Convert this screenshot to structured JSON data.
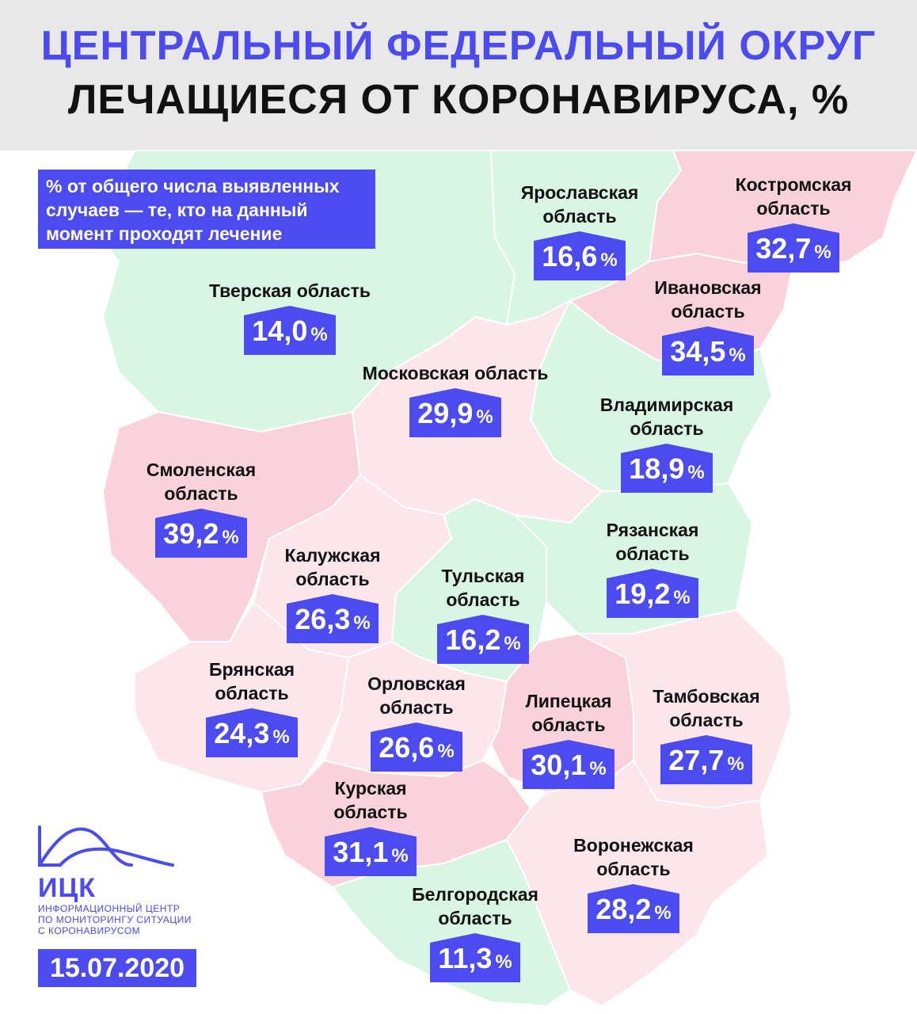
{
  "header": {
    "title_line1": "ЦЕНТРАЛЬНЫЙ ФЕДЕРАЛЬНЫЙ ОКРУГ",
    "title_line2": "ЛЕЧАЩИЕСЯ ОТ КОРОНАВИРУСА, %"
  },
  "info_note": "% от общего числа выявленных случаев — те, кто на данный момент проходят лечение",
  "colors": {
    "accent": "#4b4bf0",
    "region_green": "#d9f5e4",
    "region_pink": "#f9d2dc",
    "region_light_pink": "#fce5eb",
    "header_bg": "#e8e8e8"
  },
  "regions": [
    {
      "id": "yaroslavl",
      "name": "Ярославская\nобласть",
      "value": "16,6",
      "unit": "%"
    },
    {
      "id": "kostroma",
      "name": "Костромская\nобласть",
      "value": "32,7",
      "unit": "%"
    },
    {
      "id": "tver",
      "name": "Тверская область",
      "value": "14,0",
      "unit": "%"
    },
    {
      "id": "ivanovo",
      "name": "Ивановская\nобласть",
      "value": "34,5",
      "unit": "%"
    },
    {
      "id": "moscow",
      "name": "Московская область",
      "value": "29,9",
      "unit": "%"
    },
    {
      "id": "vladimir",
      "name": "Владимирская\nобласть",
      "value": "18,9",
      "unit": "%"
    },
    {
      "id": "smolensk",
      "name": "Смоленская\nобласть",
      "value": "39,2",
      "unit": "%"
    },
    {
      "id": "ryazan",
      "name": "Рязанская\nобласть",
      "value": "19,2",
      "unit": "%"
    },
    {
      "id": "kaluga",
      "name": "Калужская\nобласть",
      "value": "26,3",
      "unit": "%"
    },
    {
      "id": "tula",
      "name": "Тульская\nобласть",
      "value": "16,2",
      "unit": "%"
    },
    {
      "id": "bryansk",
      "name": "Брянская\nобласть",
      "value": "24,3",
      "unit": "%"
    },
    {
      "id": "orel",
      "name": "Орловская\nобласть",
      "value": "26,6",
      "unit": "%"
    },
    {
      "id": "lipetsk",
      "name": "Липецкая\nобласть",
      "value": "30,1",
      "unit": "%"
    },
    {
      "id": "tambov",
      "name": "Тамбовская\nобласть",
      "value": "27,7",
      "unit": "%"
    },
    {
      "id": "kursk",
      "name": "Курская\nобласть",
      "value": "31,1",
      "unit": "%"
    },
    {
      "id": "voronezh",
      "name": "Воронежская\nобласть",
      "value": "28,2",
      "unit": "%"
    },
    {
      "id": "belgorod",
      "name": "Белгородская\nобласть",
      "value": "11,3",
      "unit": "%"
    }
  ],
  "logo": {
    "name": "ИЦК",
    "subtitle": "ИНФОРМАЦИОННЫЙ ЦЕНТР\nПО МОНИТОРИНГУ СИТУАЦИИ\nС КОРОНАВИРУСОМ"
  },
  "date": "15.07.2020"
}
